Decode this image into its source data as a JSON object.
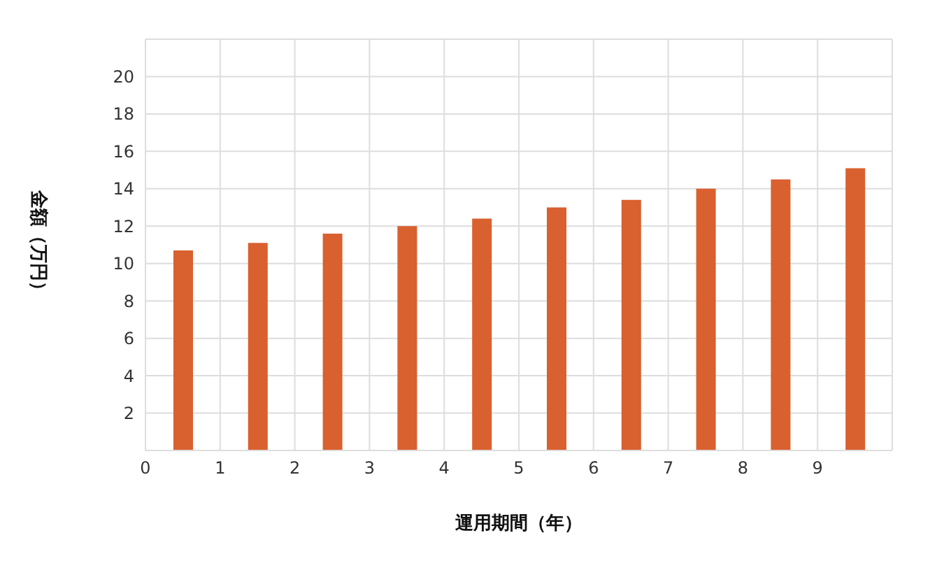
{
  "chart_data": {
    "type": "bar",
    "xlabel": "運用期間（年）",
    "ylabel": "金額（万円）",
    "x": [
      0.5,
      1.5,
      2.5,
      3.5,
      4.5,
      5.5,
      6.5,
      7.5,
      8.5,
      9.5
    ],
    "values": [
      10.7,
      11.1,
      11.6,
      12.0,
      12.4,
      13.0,
      13.4,
      14.0,
      14.5,
      15.1
    ],
    "color": "#d9602f",
    "xlim": [
      0,
      10
    ],
    "xticks": [
      0,
      1,
      2,
      3,
      4,
      5,
      6,
      7,
      8,
      9
    ],
    "ylim": [
      0,
      22
    ],
    "yticks": [
      2,
      4,
      6,
      8,
      10,
      12,
      14,
      16,
      18,
      20
    ],
    "grid": true
  }
}
